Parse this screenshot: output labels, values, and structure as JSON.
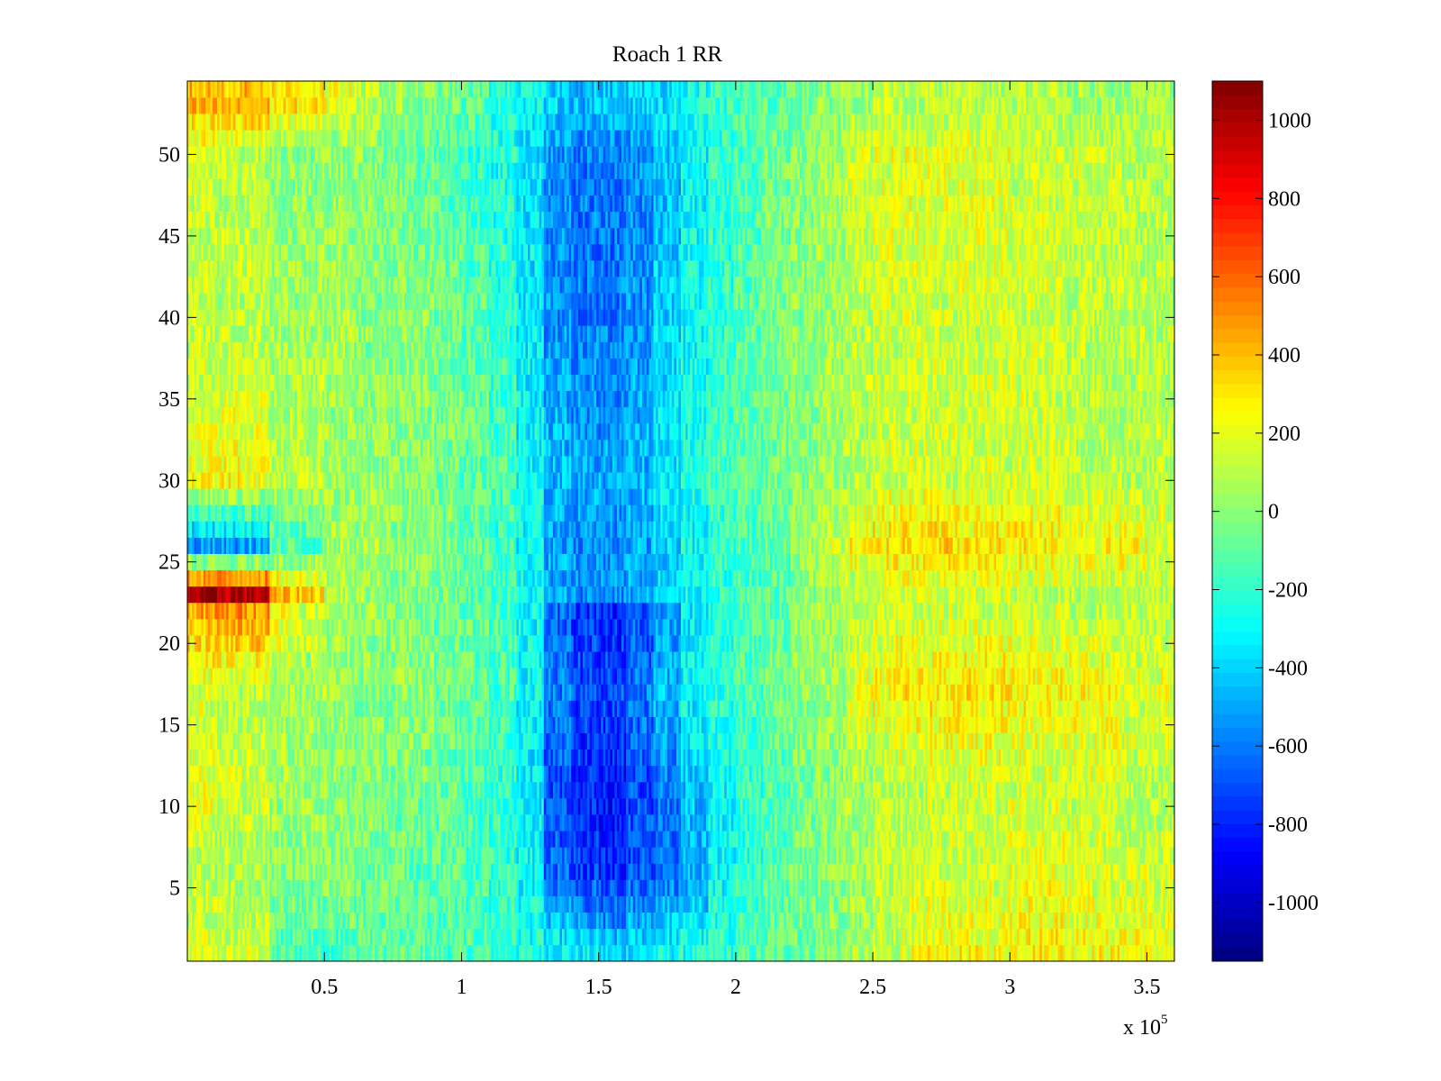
{
  "chart_data": {
    "type": "heatmap",
    "title": "Roach 1 RR",
    "xlabel": "",
    "ylabel": "",
    "x_multiplier_label": "x 10",
    "x_multiplier_exponent": "5",
    "xlim": [
      0,
      360000
    ],
    "ylim": [
      0.5,
      54.5
    ],
    "x_ticks": [
      {
        "value": 50000,
        "label": "0.5"
      },
      {
        "value": 100000,
        "label": "1"
      },
      {
        "value": 150000,
        "label": "1.5"
      },
      {
        "value": 200000,
        "label": "2"
      },
      {
        "value": 250000,
        "label": "2.5"
      },
      {
        "value": 300000,
        "label": "3"
      },
      {
        "value": 350000,
        "label": "3.5"
      }
    ],
    "y_ticks": [
      {
        "value": 5,
        "label": "5"
      },
      {
        "value": 10,
        "label": "10"
      },
      {
        "value": 15,
        "label": "15"
      },
      {
        "value": 20,
        "label": "20"
      },
      {
        "value": 25,
        "label": "25"
      },
      {
        "value": 30,
        "label": "30"
      },
      {
        "value": 35,
        "label": "35"
      },
      {
        "value": 40,
        "label": "40"
      },
      {
        "value": 45,
        "label": "45"
      },
      {
        "value": 50,
        "label": "50"
      }
    ],
    "colormap": "jet",
    "clim": [
      -1150,
      1100
    ],
    "colorbar": {
      "placement": "right",
      "ticks": [
        {
          "value": 1000,
          "label": "1000"
        },
        {
          "value": 800,
          "label": "800"
        },
        {
          "value": 600,
          "label": "600"
        },
        {
          "value": 400,
          "label": "400"
        },
        {
          "value": 200,
          "label": "200"
        },
        {
          "value": 0,
          "label": "0"
        },
        {
          "value": -200,
          "label": "-200"
        },
        {
          "value": -400,
          "label": "-400"
        },
        {
          "value": -600,
          "label": "-600"
        },
        {
          "value": -800,
          "label": "-800"
        },
        {
          "value": -1000,
          "label": "-1000"
        }
      ]
    },
    "rows": 54,
    "x_bin_size": 10000,
    "z_description_values": {
      "x_bins_center": [
        5000,
        15000,
        25000,
        35000,
        45000,
        55000,
        65000,
        75000,
        85000,
        95000,
        105000,
        115000,
        125000,
        135000,
        145000,
        155000,
        165000,
        175000,
        185000,
        195000,
        205000,
        215000,
        225000,
        235000,
        245000,
        255000,
        265000,
        275000,
        285000,
        295000,
        305000,
        315000,
        325000,
        335000,
        345000,
        355000
      ],
      "representative_rows": {
        "1": [
          150,
          150,
          150,
          -150,
          -150,
          -150,
          -100,
          -100,
          -100,
          -150,
          -150,
          -200,
          -250,
          -300,
          -350,
          -400,
          -350,
          -300,
          -250,
          -200,
          -150,
          -100,
          -50,
          0,
          50,
          100,
          200,
          250,
          250,
          250,
          300,
          300,
          250,
          250,
          250,
          200
        ],
        "6": [
          100,
          50,
          50,
          0,
          0,
          0,
          -50,
          -50,
          -100,
          -100,
          -150,
          -200,
          -300,
          -650,
          -750,
          -800,
          -700,
          -650,
          -500,
          -300,
          -200,
          -100,
          -50,
          0,
          50,
          100,
          150,
          150,
          150,
          150,
          200,
          200,
          150,
          150,
          150,
          150
        ],
        "11": [
          200,
          150,
          150,
          50,
          50,
          0,
          0,
          -50,
          -50,
          -100,
          -150,
          -200,
          -350,
          -700,
          -800,
          -850,
          -700,
          -600,
          -450,
          -300,
          -200,
          -150,
          -50,
          0,
          50,
          100,
          100,
          150,
          150,
          150,
          150,
          150,
          150,
          150,
          100,
          100
        ],
        "17": [
          150,
          100,
          100,
          50,
          50,
          50,
          0,
          0,
          0,
          -50,
          -100,
          -150,
          -300,
          -600,
          -700,
          -700,
          -600,
          -450,
          -300,
          -200,
          -150,
          -50,
          0,
          50,
          200,
          250,
          300,
          300,
          300,
          300,
          250,
          250,
          250,
          250,
          200,
          200
        ],
        "22": [
          450,
          500,
          500,
          250,
          150,
          50,
          50,
          0,
          0,
          -50,
          -100,
          -150,
          -300,
          -650,
          -750,
          -800,
          -700,
          -550,
          -350,
          -200,
          -150,
          -100,
          0,
          50,
          100,
          150,
          150,
          150,
          150,
          150,
          150,
          150,
          100,
          100,
          100,
          100
        ],
        "23": [
          1000,
          1000,
          1000,
          400,
          400,
          100,
          50,
          0,
          0,
          -50,
          -100,
          -150,
          -300,
          -500,
          -550,
          -550,
          -500,
          -400,
          -300,
          -200,
          -150,
          -100,
          0,
          50,
          100,
          150,
          150,
          150,
          150,
          150,
          100,
          100,
          100,
          100,
          100,
          100
        ],
        "26": [
          -550,
          -550,
          -500,
          -150,
          -150,
          50,
          50,
          0,
          0,
          -50,
          -100,
          -200,
          -300,
          -500,
          -550,
          -550,
          -500,
          -400,
          -300,
          -200,
          -150,
          -100,
          50,
          150,
          250,
          300,
          350,
          350,
          300,
          300,
          300,
          300,
          250,
          250,
          250,
          200
        ],
        "30": [
          250,
          250,
          200,
          100,
          100,
          50,
          50,
          0,
          0,
          -50,
          -100,
          -150,
          -300,
          -450,
          -500,
          -500,
          -450,
          -350,
          -250,
          -150,
          -100,
          -50,
          0,
          50,
          100,
          150,
          150,
          150,
          150,
          150,
          150,
          150,
          100,
          100,
          100,
          100
        ],
        "40": [
          100,
          100,
          100,
          50,
          50,
          50,
          0,
          0,
          0,
          -50,
          -100,
          -200,
          -350,
          -550,
          -600,
          -600,
          -550,
          -400,
          -300,
          -200,
          -100,
          -50,
          0,
          50,
          100,
          150,
          150,
          150,
          150,
          150,
          150,
          150,
          100,
          100,
          100,
          100
        ],
        "50": [
          150,
          100,
          100,
          0,
          0,
          0,
          0,
          -50,
          -100,
          -150,
          -200,
          -250,
          -350,
          -550,
          -600,
          -600,
          -550,
          -450,
          -300,
          -200,
          -150,
          -50,
          0,
          50,
          150,
          200,
          200,
          200,
          200,
          200,
          150,
          150,
          150,
          150,
          100,
          100
        ],
        "53": [
          400,
          400,
          400,
          300,
          300,
          200,
          100,
          50,
          0,
          -50,
          -100,
          -200,
          -300,
          -400,
          -450,
          -450,
          -400,
          -350,
          -250,
          -200,
          -150,
          -100,
          -50,
          0,
          50,
          100,
          100,
          100,
          100,
          100,
          100,
          100,
          50,
          50,
          50,
          50
        ]
      }
    }
  }
}
